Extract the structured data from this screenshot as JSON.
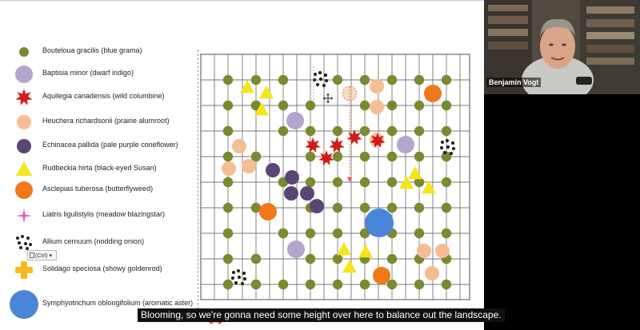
{
  "legend": [
    {
      "label": "Bouteloua gracilis (blue grama)",
      "icon": "green-dot-icon",
      "color": "#7a8a2e"
    },
    {
      "label": "Baptisia minor (dwarf indigo)",
      "icon": "lavender-circle-icon",
      "color": "#b3a6cc"
    },
    {
      "label": "Aquilegia canadensis (wild columbine)",
      "icon": "red-star-icon",
      "color": "#d11a1a"
    },
    {
      "label": "Heuchera richardsonii (prairie alumroot)",
      "icon": "peach-circle-icon",
      "color": "#f6bd92"
    },
    {
      "label": "Echinacea pallida (pale purple coneflower)",
      "icon": "purple-circle-icon",
      "color": "#5b4577"
    },
    {
      "label": "Rudbeckia hirta (black-eyed Susan)",
      "icon": "yellow-triangle-icon",
      "color": "#f5e41a"
    },
    {
      "label": "Asclepias tuberosa (butterflyweed)",
      "icon": "orange-circle-icon",
      "color": "#f07818"
    },
    {
      "label": "Liatris ligulistylis (meadow blazingstar)",
      "icon": "pink-sparkle-icon",
      "color": "#d857c8"
    },
    {
      "label": "Allium cernuum (nodding onion)",
      "icon": "black-dots-icon",
      "color": "#222222"
    },
    {
      "label": "Solidago speciosa (showy goldenrod)",
      "icon": "yellow-cross-icon",
      "color": "#f7b81e"
    },
    {
      "label": "Symphyotrichum oblongifolium (aromatic aster)",
      "icon": "blue-circle-icon",
      "color": "#4a86d8"
    }
  ],
  "paste_options": {
    "label": "(Ctrl)"
  },
  "video": {
    "speaker_name": "Benjamin Vogt"
  },
  "subtitle": "Blooming, so we're gonna need some height over here to balance out the landscape."
}
